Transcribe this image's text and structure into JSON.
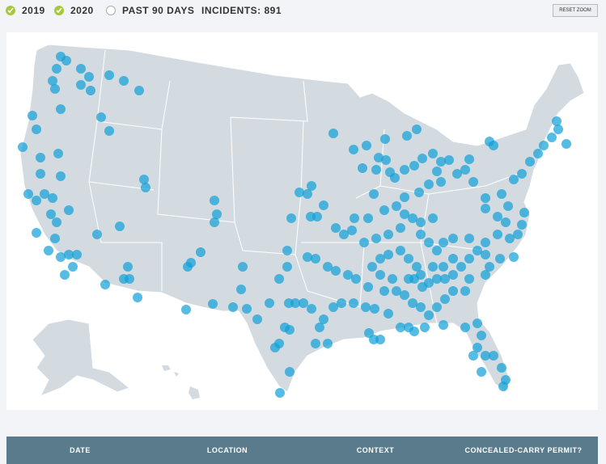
{
  "filters": [
    {
      "label": "2019",
      "checked": true
    },
    {
      "label": "2020",
      "checked": true
    },
    {
      "label": "PAST 90 DAYS",
      "checked": false
    }
  ],
  "incidents": "INCIDENTS: 891",
  "reset_button": "RESET ZOOM",
  "table": {
    "headers": [
      "DATE",
      "LOCATION",
      "CONTEXT",
      "CONCEALED-CARRY PERMIT?"
    ]
  }
}
